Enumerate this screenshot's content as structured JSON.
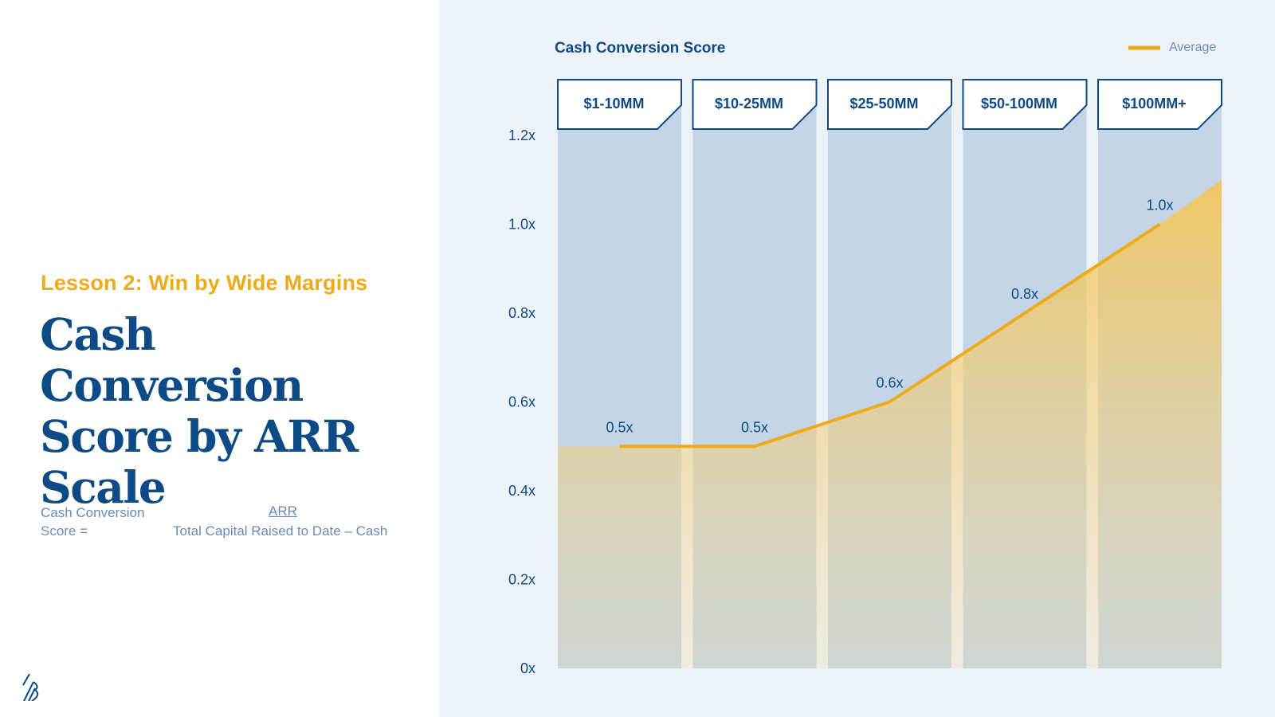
{
  "left": {
    "eyebrow": "Lesson 2: Win by Wide Margins",
    "title": "Cash Conversion Score by ARR Scale",
    "formula": {
      "label": "Cash Conversion Score =",
      "numerator": "ARR",
      "denominator": "Total Capital Raised to Date – Cash"
    }
  },
  "colors": {
    "navy": "#0d4a86",
    "gold": "#eeaa19",
    "column_fill": "#c3d5e6",
    "panel_bg": "#eef2f9",
    "muted_text": "#6a8bb4"
  },
  "chart_data": {
    "type": "line",
    "title": "Cash Conversion Score",
    "legend": {
      "label": "Average",
      "position": "top-right"
    },
    "categories": [
      "$1-10MM",
      "$10-25MM",
      "$25-50MM",
      "$50-100MM",
      "$100MM+"
    ],
    "series": [
      {
        "name": "Average",
        "values": [
          0.5,
          0.5,
          0.6,
          0.8,
          1.0
        ],
        "labels": [
          "0.5x",
          "0.5x",
          "0.6x",
          "0.8x",
          "1.0x"
        ]
      }
    ],
    "area_end_value": 1.1,
    "ylim": [
      0,
      1.2
    ],
    "yticks": [
      {
        "value": 0,
        "label": "0x"
      },
      {
        "value": 0.2,
        "label": "0.2x"
      },
      {
        "value": 0.4,
        "label": "0.4x"
      },
      {
        "value": 0.6,
        "label": "0.6x"
      },
      {
        "value": 0.8,
        "label": "0.8x"
      },
      {
        "value": 1.0,
        "label": "1.0x"
      },
      {
        "value": 1.2,
        "label": "1.2x"
      }
    ],
    "xlabel": "",
    "ylabel": ""
  }
}
